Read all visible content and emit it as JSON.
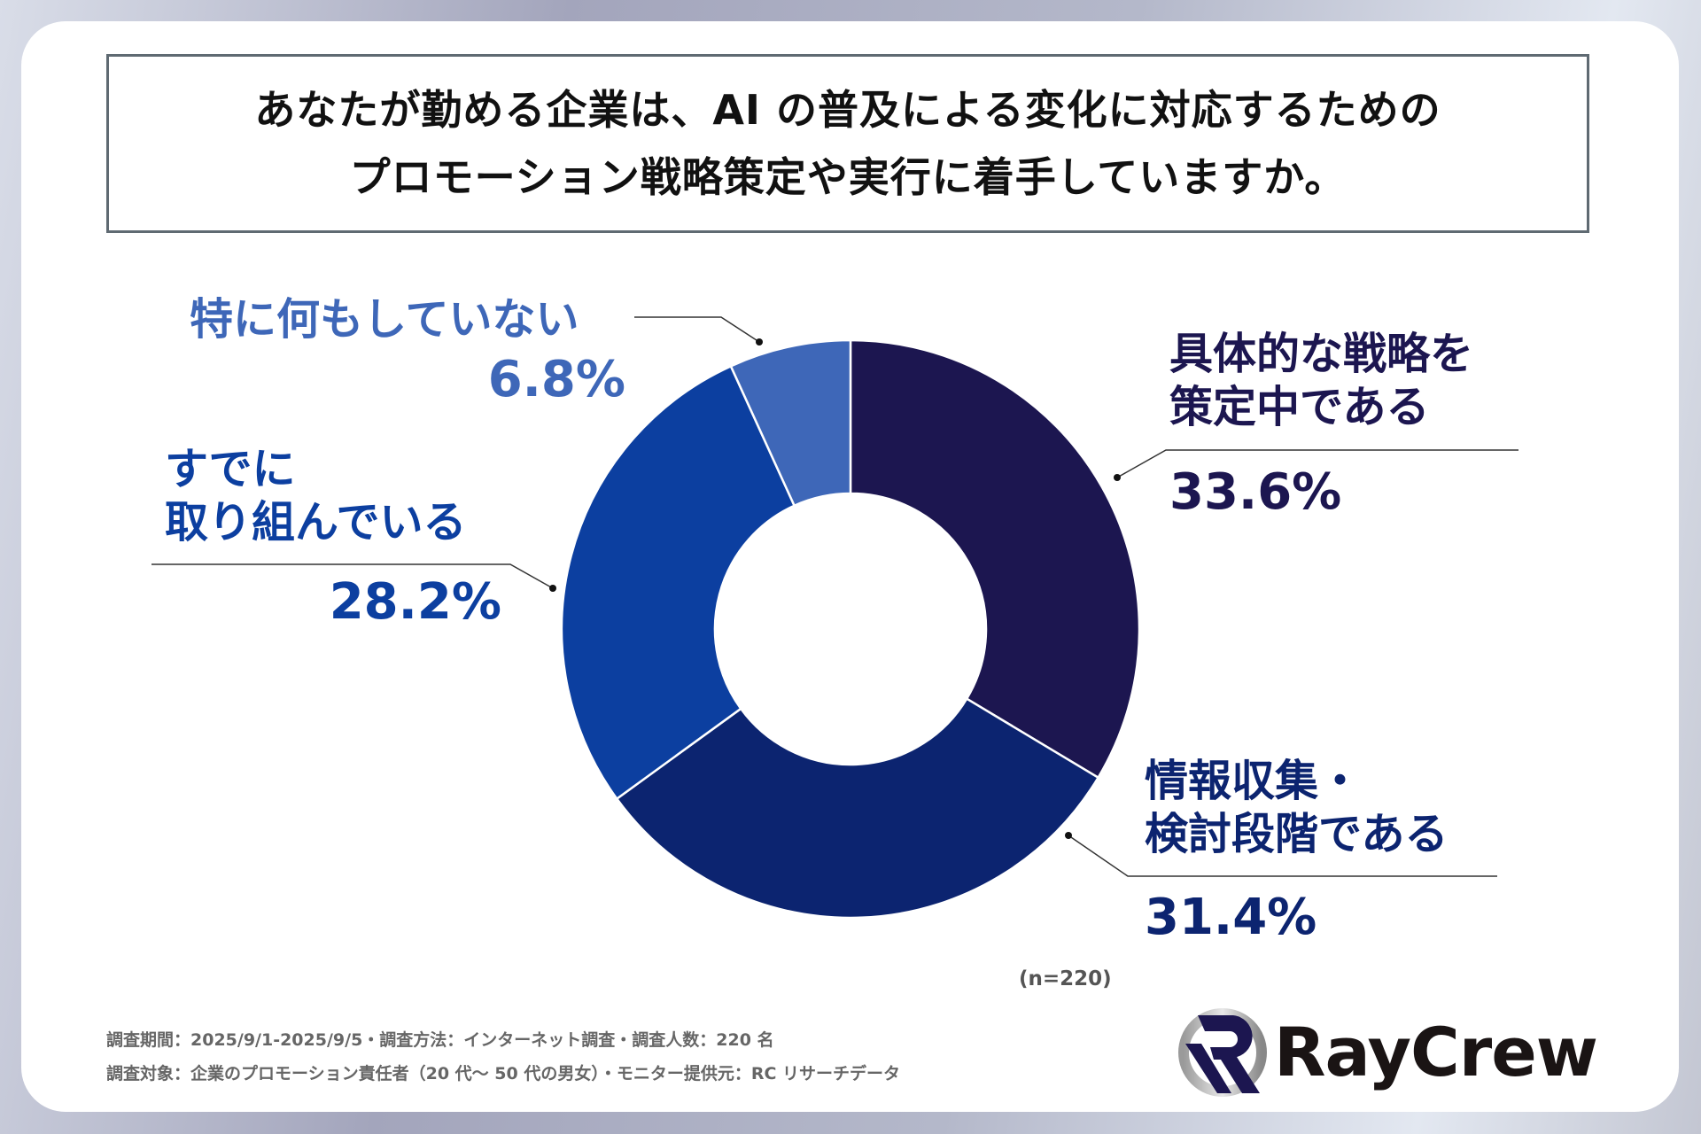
{
  "chart_data": {
    "type": "pie",
    "style": "donut",
    "title": "あなたが勤める企業は、AI の普及による変化に対応するための\nプロモーション戦略策定や実行に着手していますか。",
    "title_lines": [
      "あなたが勤める企業は、AI の普及による変化に対応するための",
      "プロモーション戦略策定や実行に着手していますか。"
    ],
    "slices": [
      {
        "label": "具体的な戦略を策定中である",
        "label_lines": [
          "具体的な戦略を",
          "策定中である"
        ],
        "value": 33.6,
        "display": "33.6%",
        "color": "#1c1650"
      },
      {
        "label": "情報収集・検討段階である",
        "label_lines": [
          "情報収集・",
          "検討段階である"
        ],
        "value": 31.4,
        "display": "31.4%",
        "color": "#0c2470"
      },
      {
        "label": "すでに取り組んでいる",
        "label_lines": [
          "すでに",
          "取り組んでいる"
        ],
        "value": 28.2,
        "display": "28.2%",
        "color": "#0c3fa0"
      },
      {
        "label": "特に何もしていない",
        "label_lines": [
          "特に何もしていない"
        ],
        "value": 6.8,
        "display": "6.8%",
        "color": "#3e67b8"
      }
    ],
    "start": "top",
    "direction": "clockwise",
    "sample_note": "(n=220)"
  },
  "footer": {
    "line1": "調査期間：2025/9/1-2025/9/5・調査方法：インターネット調査・調査人数：220 名",
    "line2": "調査対象：企業のプロモーション責任者（20 代～ 50 代の男女）・モニター提供元：RC リサーチデータ"
  },
  "logo": {
    "text": "RayCrew",
    "color": "#1c1650"
  }
}
